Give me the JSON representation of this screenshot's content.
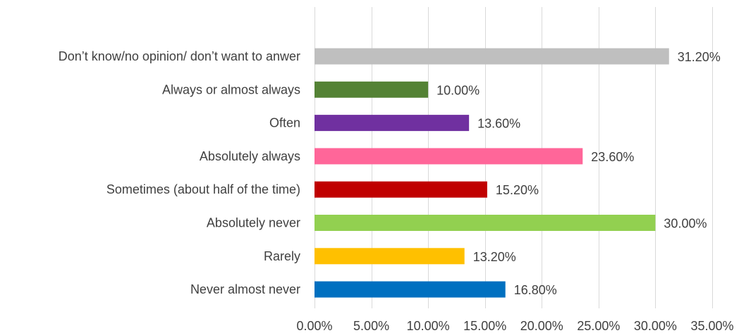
{
  "chart_data": {
    "type": "bar",
    "orientation": "horizontal",
    "title": "",
    "xlabel": "",
    "ylabel": "",
    "categories": [
      "Don’t know/no opinion/ don’t want to anwer",
      "Always or almost always",
      "Often",
      "Absolutely always",
      "Sometimes (about half of the time)",
      "Absolutely never",
      "Rarely",
      "Never almost never"
    ],
    "values": [
      31.2,
      10.0,
      13.6,
      23.6,
      15.2,
      30.0,
      13.2,
      16.8
    ],
    "data_labels": [
      "31.20%",
      "10.00%",
      "13.60%",
      "23.60%",
      "15.20%",
      "30.00%",
      "13.20%",
      "16.80%"
    ],
    "colors": [
      "#bfbfbf",
      "#548235",
      "#7030a0",
      "#ff6699",
      "#c00000",
      "#92d050",
      "#ffc000",
      "#0070c0"
    ],
    "xlim": [
      0,
      35
    ],
    "xticks": [
      0,
      5,
      10,
      15,
      20,
      25,
      30,
      35
    ],
    "xtick_labels": [
      "0.00%",
      "5.00%",
      "10.00%",
      "15.00%",
      "20.00%",
      "25.00%",
      "30.00%",
      "35.00%"
    ],
    "grid": true,
    "legend": "none"
  }
}
